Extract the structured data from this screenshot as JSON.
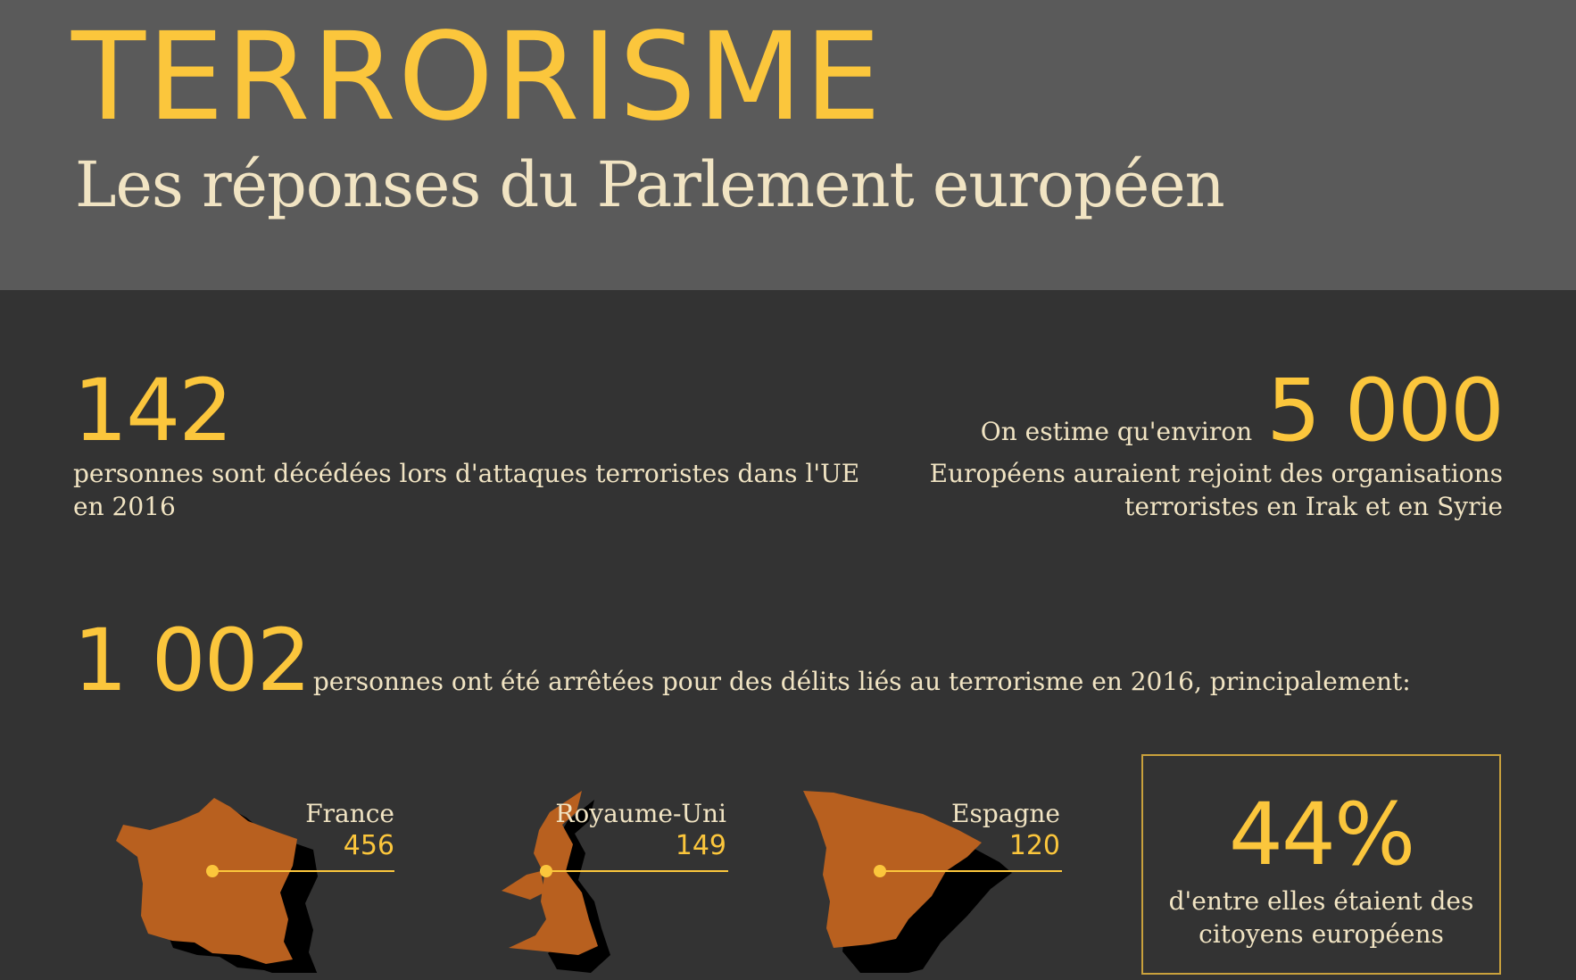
{
  "header": {
    "title": "TERRORISME",
    "subtitle": "Les réponses du Parlement européen"
  },
  "stats": {
    "deaths": {
      "value": "142",
      "text": "personnes sont décédées lors d'attaques terroristes dans l'UE en 2016"
    },
    "fighters": {
      "prefix": "On estime qu'environ",
      "value": "5 000",
      "text": "Européens auraient rejoint des organisations terroristes en Irak et en Syrie"
    },
    "arrests": {
      "value": "1 002",
      "text": "personnes ont été arrêtées pour des délits liés au terrorisme en 2016, principalement:"
    }
  },
  "countries": [
    {
      "name": "France",
      "value": "456"
    },
    {
      "name": "Royaume-Uni",
      "value": "149"
    },
    {
      "name": "Espagne",
      "value": "120"
    }
  ],
  "citizens": {
    "value": "44%",
    "text": "d'entre elles étaient des citoyens européens"
  },
  "colors": {
    "accent": "#fbc63c",
    "text": "#f1e4c3",
    "map": "#b8601f",
    "header_bg": "#5a5a5a",
    "body_bg": "#333333"
  }
}
